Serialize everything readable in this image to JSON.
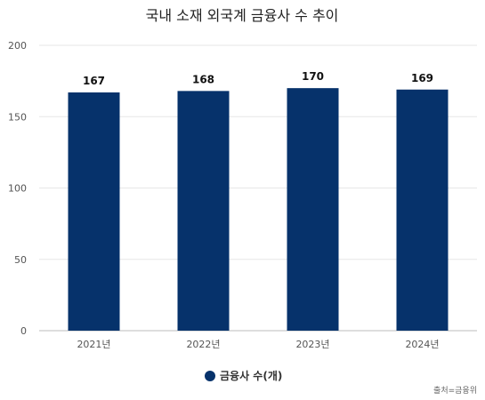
{
  "chart_data": {
    "type": "bar",
    "title": "국내 소재 외국계 금융사 수 추이",
    "categories": [
      "2021년",
      "2022년",
      "2023년",
      "2024년"
    ],
    "series": [
      {
        "name": "금융사 수(개)",
        "values": [
          167,
          168,
          170,
          169
        ],
        "color": "#06326b"
      }
    ],
    "data_labels": [
      "167",
      "168",
      "170",
      "169"
    ],
    "y_ticks": [
      0,
      50,
      100,
      150,
      200
    ],
    "ylim": [
      0,
      200
    ],
    "grid": true,
    "legend_position": "bottom-center",
    "source": "출처=금융위"
  }
}
